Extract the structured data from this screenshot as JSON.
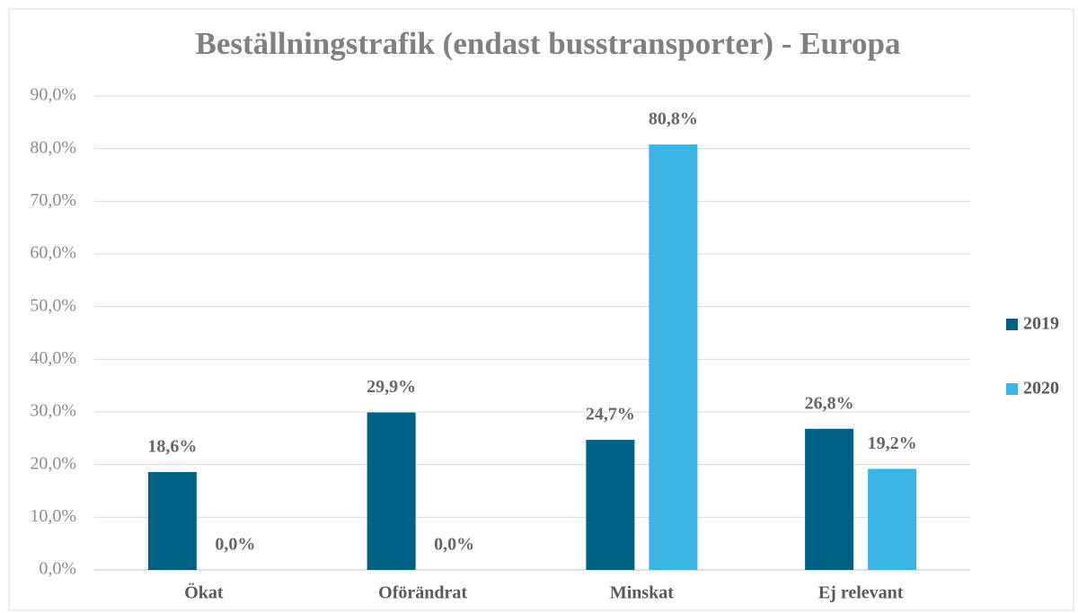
{
  "chart_data": {
    "type": "bar",
    "title": "Beställningstrafik (endast busstransporter) - Europa",
    "categories": [
      "Ökat",
      "Oförändrat",
      "Minskat",
      "Ej relevant"
    ],
    "series": [
      {
        "name": "2019",
        "color": "#006187",
        "values": [
          18.6,
          29.9,
          24.7,
          26.8
        ],
        "value_labels": [
          "18,6%",
          "29,9%",
          "24,7%",
          "26,8%"
        ]
      },
      {
        "name": "2020",
        "color": "#3cb5e5",
        "values": [
          0.0,
          0.0,
          80.8,
          19.2
        ],
        "value_labels": [
          "0,0%",
          "0,0%",
          "80,8%",
          "19,2%"
        ]
      }
    ],
    "ylim": [
      0,
      90
    ],
    "yticks": [
      {
        "value": 0,
        "label": "0,0%"
      },
      {
        "value": 10,
        "label": "10,0%"
      },
      {
        "value": 20,
        "label": "20,0%"
      },
      {
        "value": 30,
        "label": "30,0%"
      },
      {
        "value": 40,
        "label": "40,0%"
      },
      {
        "value": 50,
        "label": "50,0%"
      },
      {
        "value": 60,
        "label": "60,0%"
      },
      {
        "value": 70,
        "label": "70,0%"
      },
      {
        "value": 80,
        "label": "80,0%"
      },
      {
        "value": 90,
        "label": "90,0%"
      }
    ],
    "grid": true,
    "legend": "right"
  }
}
